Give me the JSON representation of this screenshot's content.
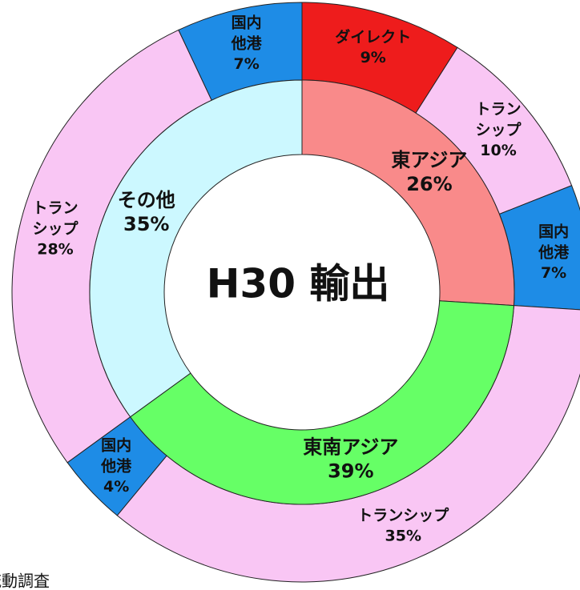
{
  "chart_data": {
    "type": "nested_donut",
    "title": "H30 輸出",
    "note": "流動調査",
    "inner": {
      "labels": [
        "東アジア",
        "東南アジア",
        "その他"
      ],
      "values": [
        26,
        39,
        35
      ],
      "value_labels": [
        "26%",
        "39%",
        "35%"
      ],
      "colors": [
        "#f98a8a",
        "#66ff66",
        "#ccf8ff"
      ]
    },
    "outer": {
      "labels": [
        "ダイレクト",
        "トラン\nシップ",
        "国内\n他港",
        "トランシップ",
        "国内\n他港",
        "トラン\nシップ",
        "国内\n他港"
      ],
      "values": [
        9,
        10,
        7,
        35,
        4,
        28,
        7
      ],
      "value_labels": [
        "9%",
        "10%",
        "7%",
        "35%",
        "4%",
        "28%",
        "7%"
      ],
      "colors": [
        "#ee1c1c",
        "#f9c6f4",
        "#1e8ce6",
        "#f9c6f4",
        "#1e8ce6",
        "#f9c6f4",
        "#1e8ce6"
      ]
    }
  }
}
